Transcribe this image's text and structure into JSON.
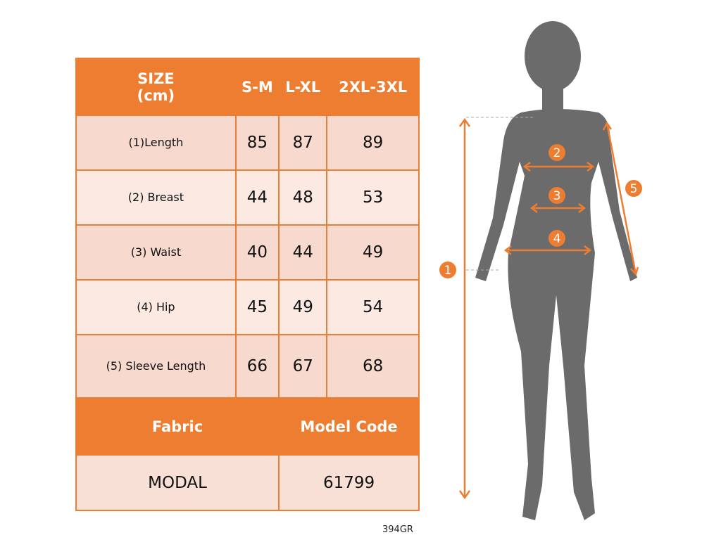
{
  "table": {
    "header": [
      "SIZE\n(cm)",
      "S-M",
      "L-XL",
      "2XL-3XL"
    ],
    "rows": [
      {
        "label": "(1)Length",
        "values": [
          "85",
          "87",
          "89"
        ]
      },
      {
        "label": "(2) Breast",
        "values": [
          "44",
          "48",
          "53"
        ]
      },
      {
        "label": "(3) Waist",
        "values": [
          "40",
          "44",
          "49"
        ]
      },
      {
        "label": "(4) Hip",
        "values": [
          "45",
          "49",
          "54"
        ]
      },
      {
        "label": "(5) Sleeve Length",
        "values": [
          "66",
          "67",
          "68"
        ]
      }
    ],
    "footer_header": [
      "Fabric",
      "Model Code"
    ],
    "footer_values": [
      "MODAL",
      "61799"
    ]
  },
  "product_code": "394GR",
  "figure": {
    "markers": [
      "1",
      "2",
      "3",
      "4",
      "5"
    ]
  },
  "colors": {
    "accent": "#ed7d31",
    "silhouette": "#6b6b6b"
  }
}
